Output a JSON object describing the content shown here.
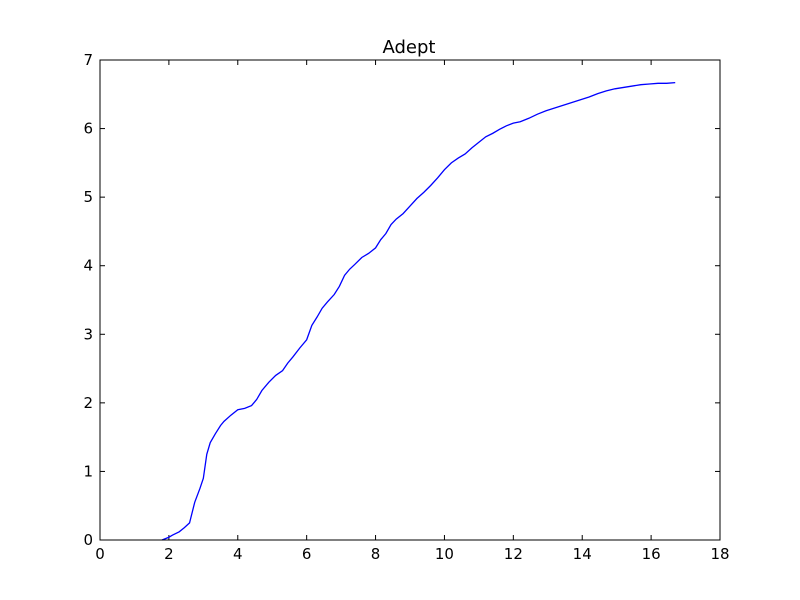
{
  "chart_data": {
    "type": "line",
    "title": "Adept",
    "xlabel": "",
    "ylabel": "",
    "xlim": [
      0,
      18
    ],
    "ylim": [
      0,
      7
    ],
    "x_ticks": [
      0,
      2,
      4,
      6,
      8,
      10,
      12,
      14,
      16,
      18
    ],
    "y_ticks": [
      0,
      1,
      2,
      3,
      4,
      5,
      6,
      7
    ],
    "x_tick_labels": [
      "0",
      "2",
      "4",
      "6",
      "8",
      "10",
      "12",
      "14",
      "16",
      "18"
    ],
    "y_tick_labels": [
      "0",
      "1",
      "2",
      "3",
      "4",
      "5",
      "6",
      "7"
    ],
    "grid": false,
    "legend": "none",
    "colors": {
      "line": "#0000ff",
      "axes": "#000000",
      "background": "#ffffff"
    },
    "series": [
      {
        "x": [
          1.8,
          2.0,
          2.1,
          2.3,
          2.45,
          2.6,
          2.75,
          2.9,
          3.0,
          3.1,
          3.2,
          3.35,
          3.5,
          3.6,
          3.8,
          4.0,
          4.2,
          4.4,
          4.55,
          4.7,
          4.9,
          5.1,
          5.3,
          5.45,
          5.6,
          5.8,
          6.0,
          6.15,
          6.3,
          6.45,
          6.6,
          6.8,
          6.95,
          7.1,
          7.25,
          7.4,
          7.6,
          7.8,
          8.0,
          8.15,
          8.3,
          8.45,
          8.6,
          8.8,
          9.0,
          9.2,
          9.4,
          9.6,
          9.8,
          10.0,
          10.2,
          10.4,
          10.6,
          10.8,
          11.0,
          11.2,
          11.4,
          11.6,
          11.8,
          12.0,
          12.2,
          12.45,
          12.7,
          12.95,
          13.2,
          13.45,
          13.7,
          13.95,
          14.2,
          14.45,
          14.7,
          14.95,
          15.2,
          15.45,
          15.7,
          15.95,
          16.2,
          16.45,
          16.7
        ],
        "values": [
          0.0,
          0.04,
          0.07,
          0.12,
          0.18,
          0.25,
          0.55,
          0.75,
          0.9,
          1.25,
          1.42,
          1.55,
          1.67,
          1.73,
          1.82,
          1.9,
          1.92,
          1.96,
          2.05,
          2.18,
          2.3,
          2.4,
          2.47,
          2.58,
          2.67,
          2.8,
          2.92,
          3.13,
          3.25,
          3.38,
          3.47,
          3.58,
          3.7,
          3.86,
          3.95,
          4.02,
          4.12,
          4.18,
          4.26,
          4.38,
          4.47,
          4.6,
          4.68,
          4.76,
          4.87,
          4.98,
          5.07,
          5.17,
          5.28,
          5.4,
          5.5,
          5.57,
          5.63,
          5.72,
          5.8,
          5.88,
          5.93,
          5.99,
          6.04,
          6.08,
          6.1,
          6.15,
          6.21,
          6.26,
          6.3,
          6.34,
          6.38,
          6.42,
          6.46,
          6.51,
          6.55,
          6.58,
          6.6,
          6.62,
          6.64,
          6.65,
          6.66,
          6.66,
          6.67
        ]
      }
    ]
  }
}
